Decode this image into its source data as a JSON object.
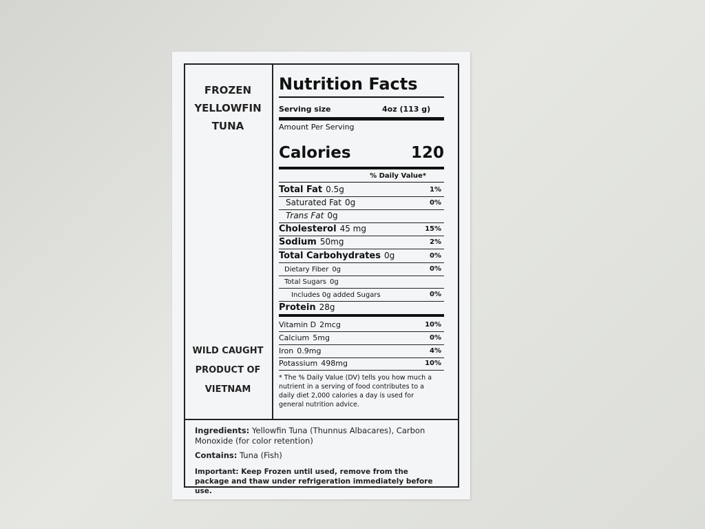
{
  "label": {
    "left_panel": {
      "product_name": [
        "FROZEN",
        "YELLOWFIN",
        "TUNA"
      ],
      "origin": [
        "WILD CAUGHT",
        "PRODUCT OF",
        "VIETNAM"
      ]
    },
    "nutrition": {
      "title": "Nutrition Facts",
      "serving_size_label": "Serving size",
      "serving_size": "4oz (113 g)",
      "amount_per_serving": "Amount Per Serving",
      "calories_label": "Calories",
      "calories": "120",
      "daily_value_header": "% Daily Value*",
      "rows": [
        {
          "name": "Total Fat",
          "amount": "0.5g",
          "dv": "1%"
        },
        {
          "name": "Saturated Fat",
          "amount": "0g",
          "dv": "0%"
        },
        {
          "name": "Trans Fat",
          "amount": "0g"
        },
        {
          "name": "Cholesterol",
          "amount": "45 mg",
          "dv": "15%"
        },
        {
          "name": "Sodium",
          "amount": "50mg",
          "dv": "2%"
        },
        {
          "name": "Total Carbohydrates",
          "amount": "0g",
          "dv": "0%"
        },
        {
          "name": "Dietary Fiber",
          "amount": "0g",
          "dv": "0%"
        },
        {
          "name": "Total Sugars",
          "amount": "0g"
        },
        {
          "name": "Includes 0g added Sugars",
          "dv": "0%"
        },
        {
          "name": "Protein",
          "amount": "28g"
        },
        {
          "name": "Vitamin D",
          "amount": "2mcg",
          "dv": "10%"
        },
        {
          "name": "Calcium",
          "amount": "5mg",
          "dv": "0%"
        },
        {
          "name": "Iron",
          "amount": "0.9mg",
          "dv": "4%"
        },
        {
          "name": "Potassium",
          "amount": "498mg",
          "dv": "10%"
        }
      ],
      "footnote": "* The %  Daily Value (DV) tells you how much a nutrient in a serving of food contributes to a daily diet  2,000  calories a day is used for general nutrition advice."
    },
    "ingredients": {
      "label": "Ingredients:",
      "text": "Yellowfin Tuna (Thunnus Albacares), Carbon Monoxide (for color retention)",
      "contains_label": "Contains:",
      "contains": "Tuna (Fish)",
      "important_label": "Important:",
      "important": "Keep Frozen until used, remove from the package and thaw under refrigeration immediately before use."
    }
  }
}
